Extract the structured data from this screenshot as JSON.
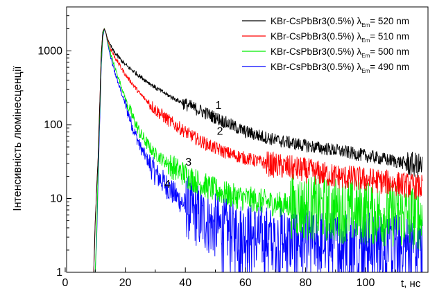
{
  "chart_data": {
    "type": "line",
    "title": "",
    "xlabel": "t, нс",
    "ylabel": "Інтенсивність люмінесценції",
    "xlim": [
      0,
      120
    ],
    "ylim": [
      1,
      5000
    ],
    "yscale": "log",
    "x_ticks": [
      "0",
      "20",
      "40",
      "60",
      "80",
      "100"
    ],
    "y_ticks": [
      "1",
      "10",
      "100",
      "1000"
    ],
    "grid": false,
    "legend_position": "top-right",
    "legend": [
      {
        "label": "KBr-CsPbBr3(0.5%)",
        "lambda": "λ",
        "sub": "Em",
        "value": "= 520 nm"
      },
      {
        "label": "KBr-CsPbBr3(0.5%)",
        "lambda": "λ",
        "sub": "Em",
        "value": "= 510 nm"
      },
      {
        "label": "KBr-CsPbBr3(0.5%)",
        "lambda": "λ",
        "sub": "Em",
        "value": "= 500 nm"
      },
      {
        "label": "KBr-CsPbBr3(0.5%)",
        "lambda": "λ",
        "sub": "Em",
        "value": "= 490 nm"
      }
    ],
    "annotations": [
      {
        "text": "1",
        "x": 50,
        "y": 165
      },
      {
        "text": "2",
        "x": 50.5,
        "y": 73
      },
      {
        "text": "3",
        "x": 40,
        "y": 28
      },
      {
        "text": "4",
        "x": 33,
        "y": 14
      }
    ],
    "series": [
      {
        "color": "#000000",
        "x": [
          9.5,
          10,
          11,
          12,
          12.5,
          13,
          13.5,
          14,
          15,
          16,
          18,
          20,
          25,
          30,
          35,
          40,
          45,
          50,
          55,
          60,
          70,
          80,
          90,
          100,
          110,
          119
        ],
        "y": [
          1,
          5,
          40,
          900,
          1800,
          2000,
          1800,
          1500,
          1200,
          1000,
          800,
          650,
          450,
          320,
          240,
          190,
          155,
          125,
          100,
          80,
          62,
          52,
          45,
          38,
          32,
          27
        ]
      },
      {
        "color": "#ff0000",
        "x": [
          9.5,
          10,
          11,
          12,
          12.5,
          13,
          13.5,
          14,
          15,
          16,
          18,
          20,
          25,
          30,
          35,
          40,
          45,
          50,
          55,
          60,
          70,
          80,
          90,
          100,
          110,
          119
        ],
        "y": [
          1,
          5,
          40,
          900,
          1800,
          2000,
          1800,
          1450,
          1100,
          900,
          650,
          480,
          260,
          160,
          110,
          80,
          60,
          48,
          40,
          35,
          28,
          24,
          20,
          18,
          16,
          14
        ]
      },
      {
        "color": "#00ee00",
        "x": [
          10,
          10.5,
          11,
          12,
          12.5,
          13,
          13.5,
          14,
          15,
          16,
          18,
          20,
          22,
          25,
          28,
          30,
          35,
          40,
          45,
          50,
          55,
          60,
          70,
          80,
          90,
          100,
          110,
          119
        ],
        "y": [
          1,
          4,
          30,
          700,
          1600,
          2000,
          1800,
          1400,
          950,
          700,
          400,
          230,
          140,
          75,
          50,
          40,
          28,
          21,
          16,
          13,
          11,
          10,
          8.5,
          7.5,
          7,
          6.5,
          6,
          5.5
        ]
      },
      {
        "color": "#0000ff",
        "x": [
          10,
          10.5,
          11,
          12,
          12.5,
          13,
          13.5,
          14,
          15,
          16,
          18,
          20,
          22,
          25,
          28,
          30,
          35,
          40,
          45,
          50,
          55,
          60,
          70,
          80,
          90,
          100,
          110,
          119
        ],
        "y": [
          1,
          3,
          20,
          600,
          1500,
          1950,
          1800,
          1350,
          850,
          600,
          330,
          190,
          105,
          50,
          30,
          22,
          13,
          8,
          5.5,
          4.2,
          3.5,
          3.2,
          2.8,
          2.6,
          2.5,
          2.4,
          2.3,
          2.2
        ]
      }
    ]
  }
}
